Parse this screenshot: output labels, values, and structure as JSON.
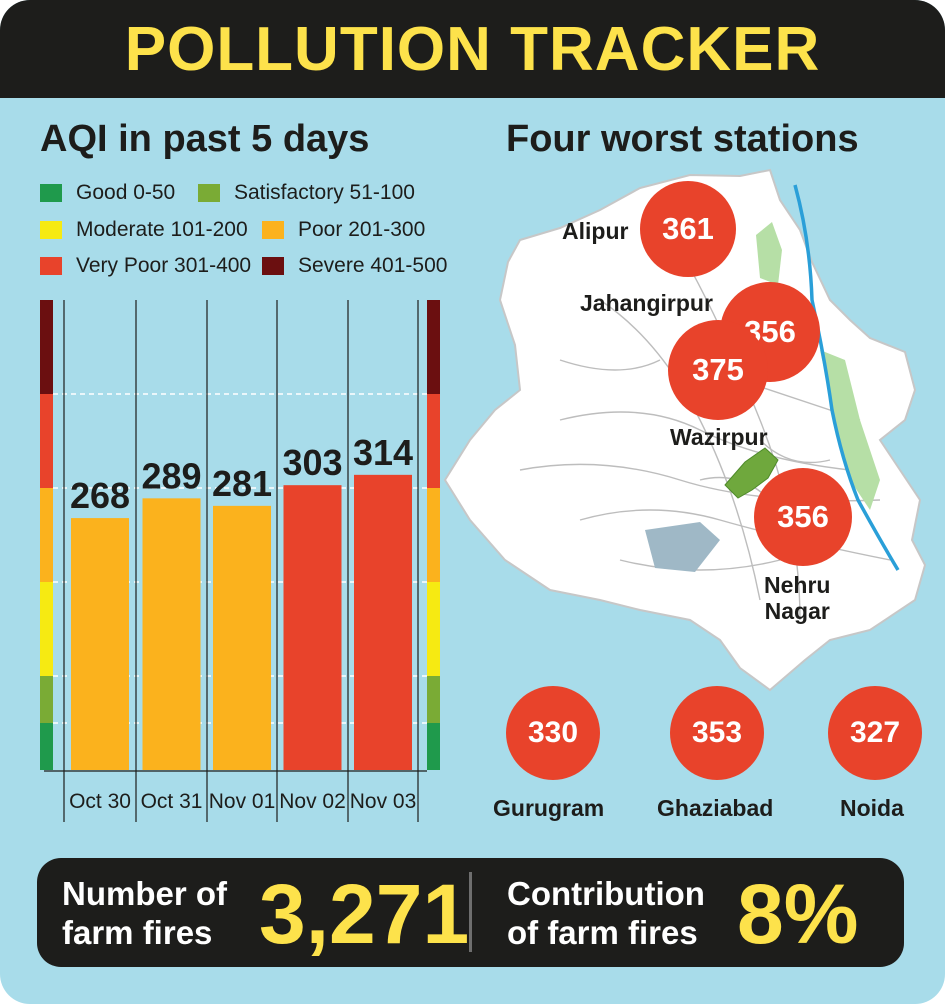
{
  "title": "POLLUTION TRACKER",
  "left_title": "AQI in past 5 days",
  "right_title": "Four worst stations",
  "legend": [
    {
      "label": "Good 0-50",
      "color": "#1f9a4c"
    },
    {
      "label": "Satisfactory 51-100",
      "color": "#7aab35"
    },
    {
      "label": "Moderate 101-200",
      "color": "#f6ea12"
    },
    {
      "label": "Poor 201-300",
      "color": "#fbb21d"
    },
    {
      "label": "Very Poor 301-400",
      "color": "#e8432b"
    },
    {
      "label": "Severe 401-500",
      "color": "#6b0f10"
    }
  ],
  "chart_data": {
    "type": "bar",
    "categories": [
      "Oct 30",
      "Oct 31",
      "Nov 01",
      "Nov 02",
      "Nov 03"
    ],
    "values": [
      268,
      289,
      281,
      303,
      314
    ],
    "bar_colors": [
      "#fbb21d",
      "#fbb21d",
      "#fbb21d",
      "#e8432b",
      "#e8432b"
    ],
    "ylim": [
      0,
      500
    ],
    "scale_bands": [
      {
        "from": 0,
        "to": 50,
        "color": "#1f9a4c"
      },
      {
        "from": 50,
        "to": 100,
        "color": "#7aab35"
      },
      {
        "from": 100,
        "to": 200,
        "color": "#f6ea12"
      },
      {
        "from": 200,
        "to": 300,
        "color": "#fbb21d"
      },
      {
        "from": 300,
        "to": 400,
        "color": "#e8432b"
      },
      {
        "from": 400,
        "to": 500,
        "color": "#6b0f10"
      }
    ],
    "grid": true
  },
  "stations": [
    {
      "name": "Alipur",
      "aqi": "361"
    },
    {
      "name": "Jahangirpur",
      "aqi": "356"
    },
    {
      "name": "Wazirpur",
      "aqi": "375"
    },
    {
      "name": "Nehru\nNagar",
      "aqi": "356"
    }
  ],
  "ncr": [
    {
      "name": "Gurugram",
      "aqi": "330"
    },
    {
      "name": "Ghaziabad",
      "aqi": "353"
    },
    {
      "name": "Noida",
      "aqi": "327"
    }
  ],
  "footer": {
    "farm_fires_label": "Number of\nfarm fires",
    "farm_fires_value": "3,271",
    "contribution_label": "Contribution\nof farm fires",
    "contribution_value": "8%"
  },
  "colors": {
    "background": "#a8dcea",
    "header": "#1d1d1b",
    "accent": "#fde24b",
    "marker": "#e8432b"
  }
}
